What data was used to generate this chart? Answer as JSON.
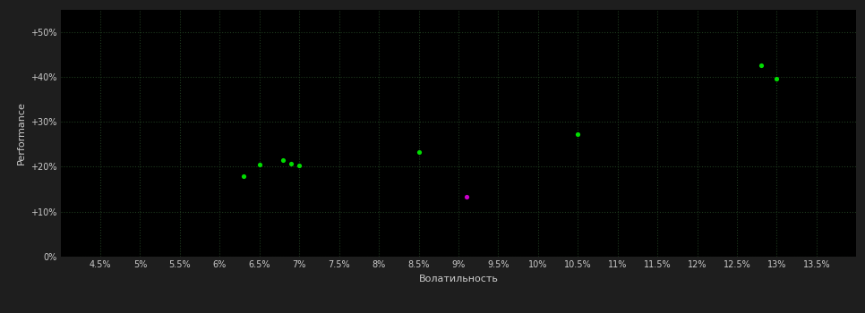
{
  "background_color": "#1e1e1e",
  "plot_bg_color": "#000000",
  "grid_color": "#1a3a1a",
  "text_color": "#cccccc",
  "xlabel": "Волатильность",
  "ylabel": "Performance",
  "xlim": [
    0.04,
    0.14
  ],
  "ylim": [
    0.0,
    0.55
  ],
  "xticks": [
    0.045,
    0.05,
    0.055,
    0.06,
    0.065,
    0.07,
    0.075,
    0.08,
    0.085,
    0.09,
    0.095,
    0.1,
    0.105,
    0.11,
    0.115,
    0.12,
    0.125,
    0.13,
    0.135
  ],
  "yticks": [
    0.0,
    0.1,
    0.2,
    0.3,
    0.4,
    0.5
  ],
  "ytick_labels": [
    "0%",
    "+10%",
    "+20%",
    "+30%",
    "+40%",
    "+50%"
  ],
  "xtick_labels": [
    "4.5%",
    "5%",
    "5.5%",
    "6%",
    "6.5%",
    "7%",
    "7.5%",
    "8%",
    "8.5%",
    "9%",
    "9.5%",
    "10%",
    "10.5%",
    "11%",
    "11.5%",
    "12%",
    "12.5%",
    "13%",
    "13.5%"
  ],
  "green_dots": [
    [
      0.063,
      0.18
    ],
    [
      0.065,
      0.205
    ],
    [
      0.068,
      0.215
    ],
    [
      0.069,
      0.207
    ],
    [
      0.07,
      0.202
    ],
    [
      0.085,
      0.232
    ],
    [
      0.105,
      0.272
    ],
    [
      0.128,
      0.425
    ],
    [
      0.13,
      0.395
    ]
  ],
  "magenta_dots": [
    [
      0.091,
      0.134
    ]
  ],
  "dot_size": 14,
  "green_color": "#00dd00",
  "magenta_color": "#cc00cc"
}
